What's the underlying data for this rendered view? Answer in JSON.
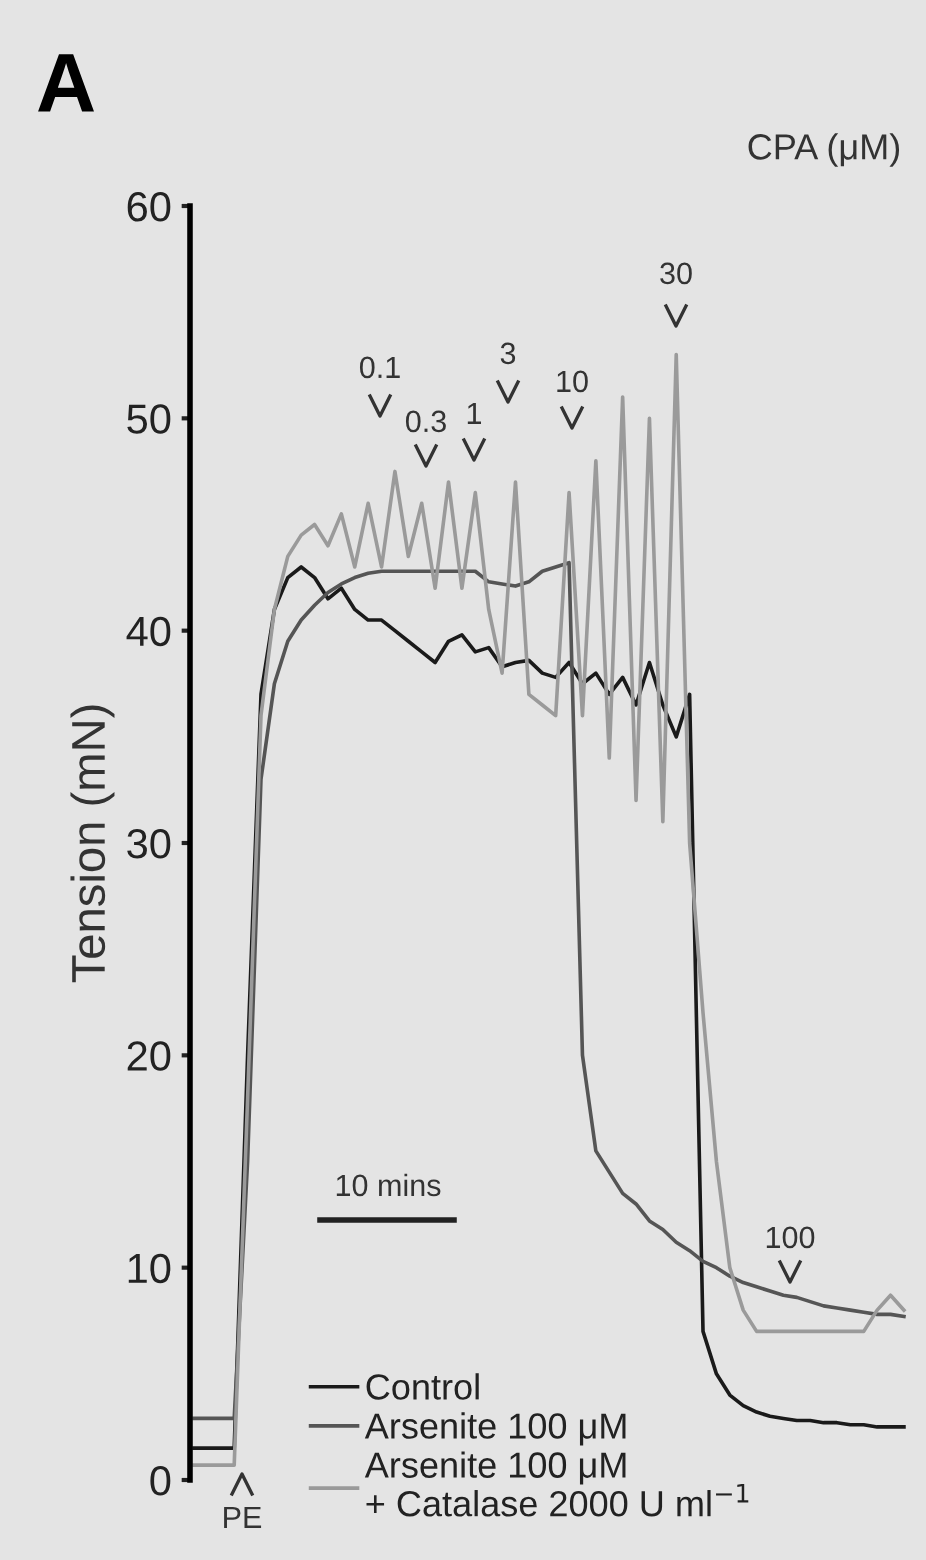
{
  "chart_data": {
    "type": "line",
    "title": "A",
    "ylabel": "Tension (mN)",
    "annotations": [
      "CPA (μM)",
      "0.1",
      "0.3",
      "1",
      "3",
      "10",
      "30",
      "100",
      "PE",
      "10 mins"
    ],
    "categories": [
      null,
      null,
      null,
      null,
      null,
      null,
      null,
      null,
      null,
      null,
      null,
      null,
      null,
      null,
      null,
      null,
      null,
      null,
      null,
      null,
      null,
      null,
      null,
      null,
      null,
      null,
      null,
      null,
      null,
      null,
      null,
      null,
      null,
      null,
      null,
      null,
      null,
      null,
      null,
      null,
      null,
      null,
      null,
      null,
      null,
      null,
      null,
      null,
      null,
      null,
      null,
      null,
      null,
      null
    ],
    "ylim": [
      0,
      60
    ],
    "yticks": [
      0,
      10,
      20,
      30,
      40,
      50,
      60
    ],
    "grid": false,
    "legend": "bottom",
    "tick_labels": "y",
    "series": [
      {
        "name": "Control",
        "color": "#1a1a1a",
        "values": [
          1.5,
          1.5,
          1.5,
          1.5,
          20,
          37,
          41,
          42.5,
          43,
          42.5,
          41.5,
          42,
          41,
          40.5,
          40.5,
          40,
          39.5,
          39,
          38.5,
          39.5,
          39.8,
          39,
          39.2,
          38.3,
          38.5,
          38.6,
          38,
          37.8,
          38.5,
          37.5,
          38,
          37,
          37.8,
          36.5,
          38.5,
          36.5,
          35,
          37,
          7,
          5,
          4,
          3.5,
          3.2,
          3,
          2.9,
          2.8,
          2.8,
          2.7,
          2.7,
          2.6,
          2.6,
          2.5,
          2.5,
          2.5
        ]
      },
      {
        "name": "Arsenite 100 μM",
        "color": "#555555",
        "values": [
          2.9,
          2.9,
          2.9,
          2.9,
          15,
          33,
          37.5,
          39.5,
          40.5,
          41.2,
          41.8,
          42.2,
          42.5,
          42.7,
          42.8,
          42.8,
          42.8,
          42.8,
          42.8,
          42.8,
          42.8,
          42.8,
          42.3,
          42.2,
          42.1,
          42.3,
          42.8,
          43,
          43.2,
          20,
          15.5,
          14.5,
          13.5,
          13,
          12.2,
          11.8,
          11.2,
          10.8,
          10.3,
          10,
          9.6,
          9.3,
          9.1,
          8.9,
          8.7,
          8.6,
          8.4,
          8.2,
          8.1,
          8,
          7.9,
          7.8,
          7.8,
          7.7
        ]
      },
      {
        "name": "Arsenite 100 μM\n+ Catalase 2000 U ml$^{−1}$",
        "color": "#9a9a9a",
        "values": [
          0.7,
          0.7,
          0.7,
          0.7,
          18,
          36,
          41,
          43.5,
          44.5,
          45,
          44,
          45.5,
          43,
          46,
          43,
          47.5,
          43.5,
          46,
          42,
          47,
          42,
          46.5,
          41,
          38,
          47,
          37,
          36.5,
          36,
          46.5,
          36,
          48,
          34,
          51,
          32,
          50,
          31,
          53,
          30,
          22,
          15,
          10,
          8,
          7,
          7,
          7,
          7,
          7,
          7,
          7,
          7,
          7,
          8,
          8.7,
          8
        ]
      }
    ]
  }
}
